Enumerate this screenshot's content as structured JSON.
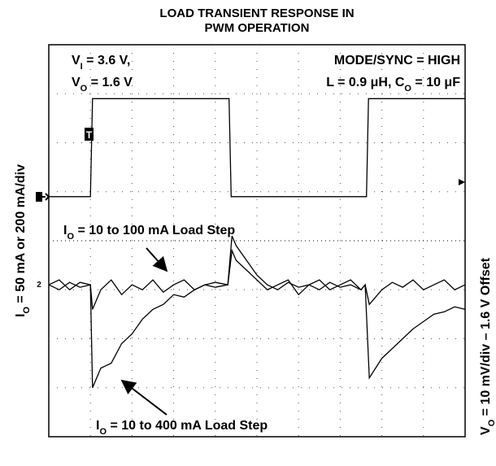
{
  "chart_data": {
    "type": "line",
    "title": [
      "LOAD TRANSIENT RESPONSE IN",
      "PWM OPERATION"
    ],
    "ylabel_left": [
      "I",
      "O",
      " = 50 mA or 200 mA/div"
    ],
    "ylabel_right": [
      "V",
      "O",
      " = 10 mV/div – 1.6 V Offset"
    ],
    "annotations": [
      {
        "text": [
          "V",
          "I",
          " = 3.6 V,"
        ]
      },
      {
        "text": [
          "V",
          "O",
          " = 1.6 V"
        ]
      },
      {
        "text": [
          "MODE/SYNC = HIGH"
        ]
      },
      {
        "text": [
          "L = 0.9 μH, C",
          "O",
          " = 10 μF"
        ]
      },
      {
        "text": [
          "I",
          "O",
          " = 10 to 100 mA Load Step"
        ]
      },
      {
        "text": [
          "I",
          "O",
          " = 10 to 400 mA Load Step"
        ]
      }
    ],
    "trigger_marker": "T",
    "channel_marker": "2",
    "xlim": [
      0,
      10
    ],
    "ylim": [
      0,
      8
    ],
    "grid": true,
    "series": [
      {
        "name": "Load current",
        "color": "#000000",
        "x": [
          0,
          1.0,
          1.05,
          4.33,
          4.38,
          7.63,
          7.68,
          10
        ],
        "values": [
          4.9,
          4.9,
          6.9,
          6.9,
          4.9,
          4.9,
          6.9,
          6.9
        ]
      },
      {
        "name": "10 to 100 mA",
        "color": "#000000",
        "x": [
          0,
          0.25,
          0.5,
          0.75,
          1.0,
          1.05,
          1.25,
          1.5,
          1.75,
          2,
          2.25,
          2.5,
          2.75,
          3,
          3.25,
          3.5,
          3.75,
          4,
          4.3,
          4.4,
          4.5,
          4.75,
          5,
          5.25,
          5.5,
          5.75,
          6,
          6.25,
          6.5,
          6.75,
          7,
          7.25,
          7.5,
          7.6,
          7.7,
          8,
          8.25,
          8.5,
          8.75,
          9,
          9.25,
          9.5,
          9.75,
          10
        ],
        "values": [
          3.1,
          3.2,
          3.0,
          3.15,
          3.1,
          2.6,
          3.0,
          3.2,
          2.9,
          3.1,
          3.0,
          3.2,
          2.95,
          3.1,
          3.2,
          3.0,
          3.1,
          3.15,
          3.1,
          3.8,
          3.6,
          3.4,
          3.2,
          3.0,
          3.1,
          3.2,
          2.9,
          3.1,
          3.2,
          3.0,
          3.1,
          3.2,
          3.0,
          3.1,
          2.7,
          3.0,
          3.15,
          3.05,
          3.2,
          3.0,
          3.1,
          3.2,
          3.0,
          3.1
        ]
      },
      {
        "name": "10 to 400 mA",
        "color": "#000000",
        "x": [
          0,
          0.25,
          0.5,
          0.75,
          1.0,
          1.05,
          1.25,
          1.5,
          1.75,
          2,
          2.25,
          2.5,
          2.75,
          3,
          3.25,
          3.5,
          3.75,
          4,
          4.3,
          4.4,
          4.5,
          4.75,
          5,
          5.25,
          5.5,
          5.75,
          6,
          6.25,
          6.5,
          6.75,
          7,
          7.25,
          7.5,
          7.6,
          7.7,
          8,
          8.25,
          8.5,
          8.75,
          9,
          9.25,
          9.5,
          9.75,
          10
        ],
        "values": [
          3.1,
          3.0,
          3.15,
          3.05,
          3.1,
          1.0,
          1.4,
          1.5,
          1.9,
          2.1,
          2.4,
          2.6,
          2.7,
          2.9,
          2.85,
          3.0,
          3.1,
          3.05,
          3.1,
          4.1,
          3.9,
          3.6,
          3.3,
          3.1,
          3.0,
          3.15,
          3.05,
          3.1,
          3.0,
          3.15,
          3.05,
          3.1,
          3.0,
          3.1,
          1.2,
          1.6,
          1.8,
          2.0,
          2.2,
          2.35,
          2.5,
          2.55,
          2.65,
          2.6
        ]
      }
    ]
  }
}
